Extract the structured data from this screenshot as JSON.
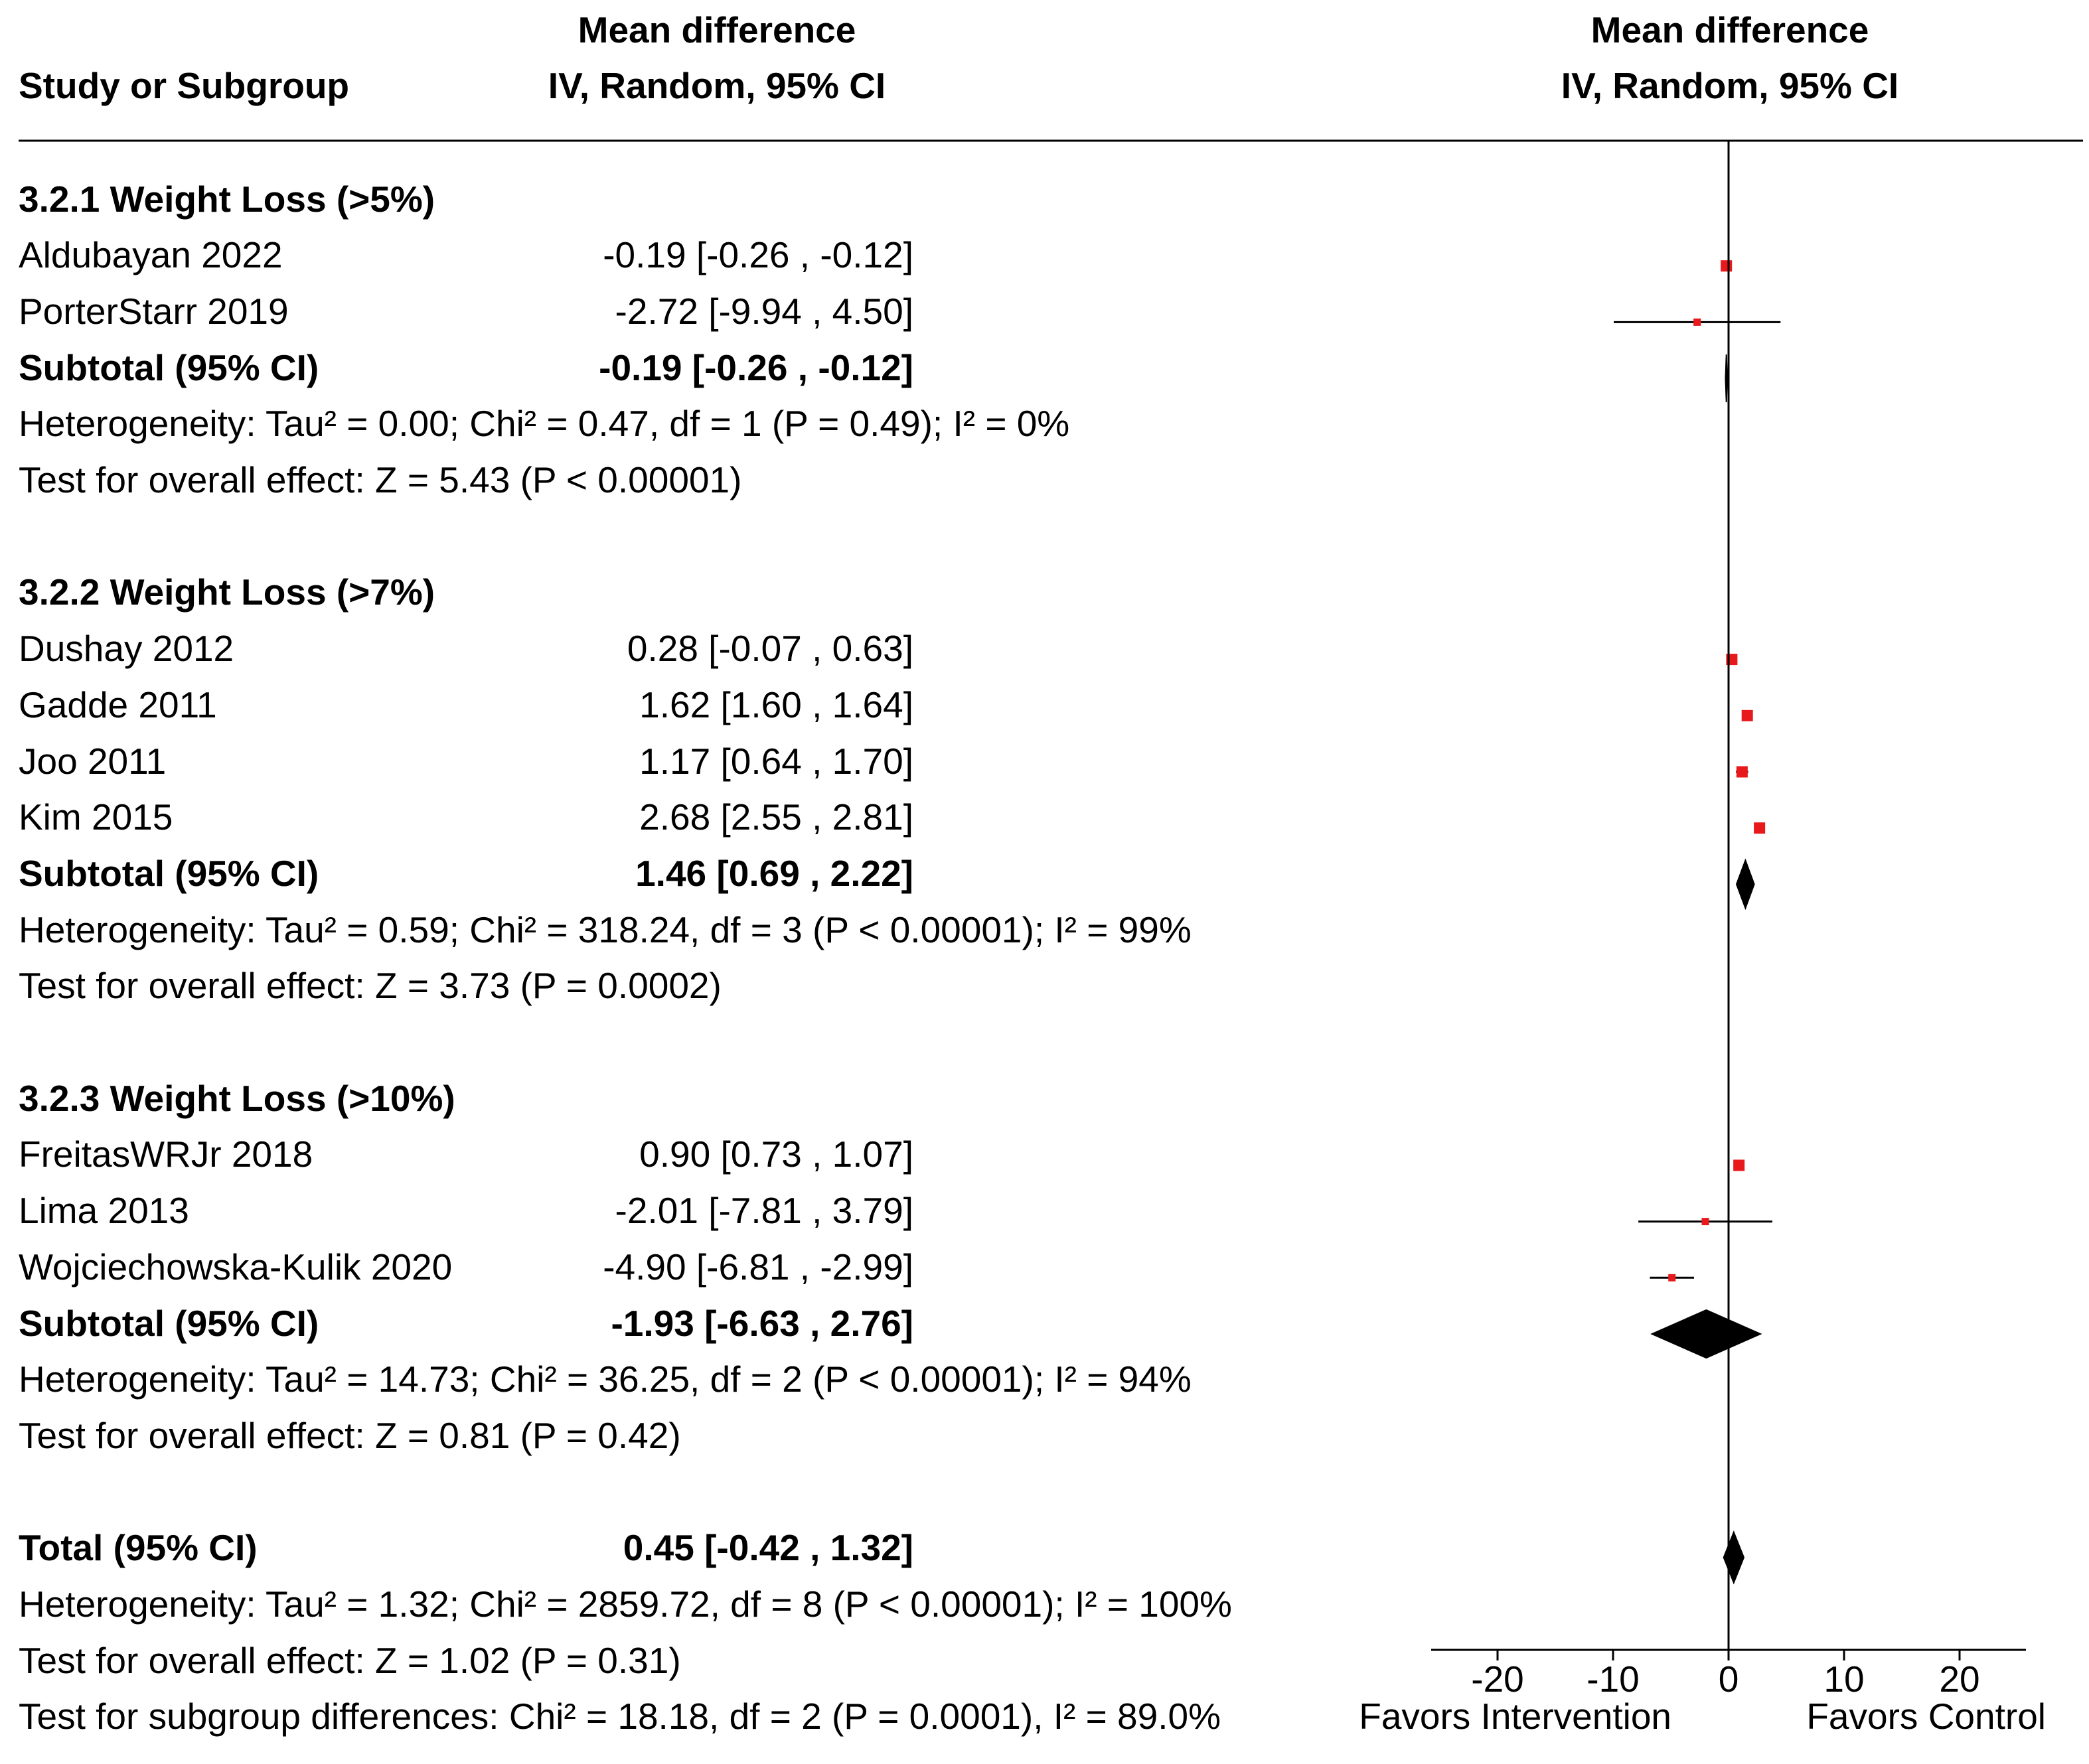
{
  "chart_data": {
    "type": "forest",
    "header": {
      "study_col": "Study or Subgroup",
      "md_col_line1": "Mean difference",
      "md_col_line2": "IV, Random, 95% CI",
      "plot_col_line1": "Mean difference",
      "plot_col_line2": "IV, Random, 95% CI"
    },
    "subgroups": [
      {
        "title": "3.2.1 Weight Loss (>5%)",
        "studies": [
          {
            "name": "Aldubayan 2022",
            "ci_text": "-0.19 [-0.26 , -0.12]",
            "md": -0.19,
            "lo": -0.26,
            "hi": -0.12
          },
          {
            "name": "PorterStarr 2019",
            "ci_text": "-2.72 [-9.94 , 4.50]",
            "md": -2.72,
            "lo": -9.94,
            "hi": 4.5
          }
        ],
        "subtotal_label": "Subtotal (95% CI)",
        "subtotal_text": "-0.19 [-0.26 , -0.12]",
        "subtotal": {
          "md": -0.19,
          "lo": -0.26,
          "hi": -0.12
        },
        "heterogeneity": "Heterogeneity: Tau² = 0.00; Chi² = 0.47, df = 1 (P = 0.49); I² = 0%",
        "overall": "Test for overall effect: Z = 5.43 (P < 0.00001)"
      },
      {
        "title": "3.2.2 Weight Loss (>7%)",
        "studies": [
          {
            "name": "Dushay 2012",
            "ci_text": "0.28 [-0.07 , 0.63]",
            "md": 0.28,
            "lo": -0.07,
            "hi": 0.63
          },
          {
            "name": "Gadde 2011",
            "ci_text": "1.62 [1.60 , 1.64]",
            "md": 1.62,
            "lo": 1.6,
            "hi": 1.64
          },
          {
            "name": "Joo 2011",
            "ci_text": "1.17 [0.64 , 1.70]",
            "md": 1.17,
            "lo": 0.64,
            "hi": 1.7
          },
          {
            "name": "Kim 2015",
            "ci_text": "2.68 [2.55 , 2.81]",
            "md": 2.68,
            "lo": 2.55,
            "hi": 2.81
          }
        ],
        "subtotal_label": "Subtotal (95% CI)",
        "subtotal_text": "1.46 [0.69 , 2.22]",
        "subtotal": {
          "md": 1.46,
          "lo": 0.69,
          "hi": 2.22
        },
        "heterogeneity": "Heterogeneity: Tau² = 0.59; Chi² = 318.24, df = 3 (P < 0.00001); I² = 99%",
        "overall": "Test for overall effect: Z = 3.73 (P = 0.0002)"
      },
      {
        "title": "3.2.3 Weight Loss (>10%)",
        "studies": [
          {
            "name": "FreitasWRJr 2018",
            "ci_text": "0.90 [0.73 , 1.07]",
            "md": 0.9,
            "lo": 0.73,
            "hi": 1.07
          },
          {
            "name": "Lima 2013",
            "ci_text": "-2.01 [-7.81 , 3.79]",
            "md": -2.01,
            "lo": -7.81,
            "hi": 3.79
          },
          {
            "name": "Wojciechowska-Kulik 2020",
            "ci_text": "-4.90 [-6.81 , -2.99]",
            "md": -4.9,
            "lo": -6.81,
            "hi": -2.99
          }
        ],
        "subtotal_label": "Subtotal (95% CI)",
        "subtotal_text": "-1.93 [-6.63 , 2.76]",
        "subtotal": {
          "md": -1.93,
          "lo": -6.63,
          "hi": 2.76
        },
        "heterogeneity": "Heterogeneity: Tau² = 14.73; Chi² = 36.25, df = 2 (P < 0.00001); I² = 94%",
        "overall": "Test for overall effect: Z = 0.81 (P = 0.42)"
      }
    ],
    "total": {
      "label": "Total (95% CI)",
      "text": "0.45 [-0.42 , 1.32]",
      "md": 0.45,
      "lo": -0.42,
      "hi": 1.32,
      "heterogeneity": "Heterogeneity: Tau² = 1.32; Chi² = 2859.72, df = 8 (P < 0.00001); I² = 100%",
      "overall": "Test for overall effect: Z = 1.02 (P = 0.31)",
      "subgroup_diff": "Test for subgroup differences: Chi² = 18.18, df = 2 (P = 0.0001), I² = 89.0%"
    },
    "axis": {
      "xlim": [
        -25,
        25
      ],
      "ticks": [
        -20,
        -10,
        0,
        10,
        20
      ],
      "tick_labels": [
        "-20",
        "-10",
        "0",
        "10",
        "20"
      ],
      "favors_left": "Favors Intervention",
      "favors_right": "Favors Control"
    },
    "colors": {
      "study_marker": "#e8191c",
      "summary": "#000000",
      "line": "#000000"
    }
  }
}
